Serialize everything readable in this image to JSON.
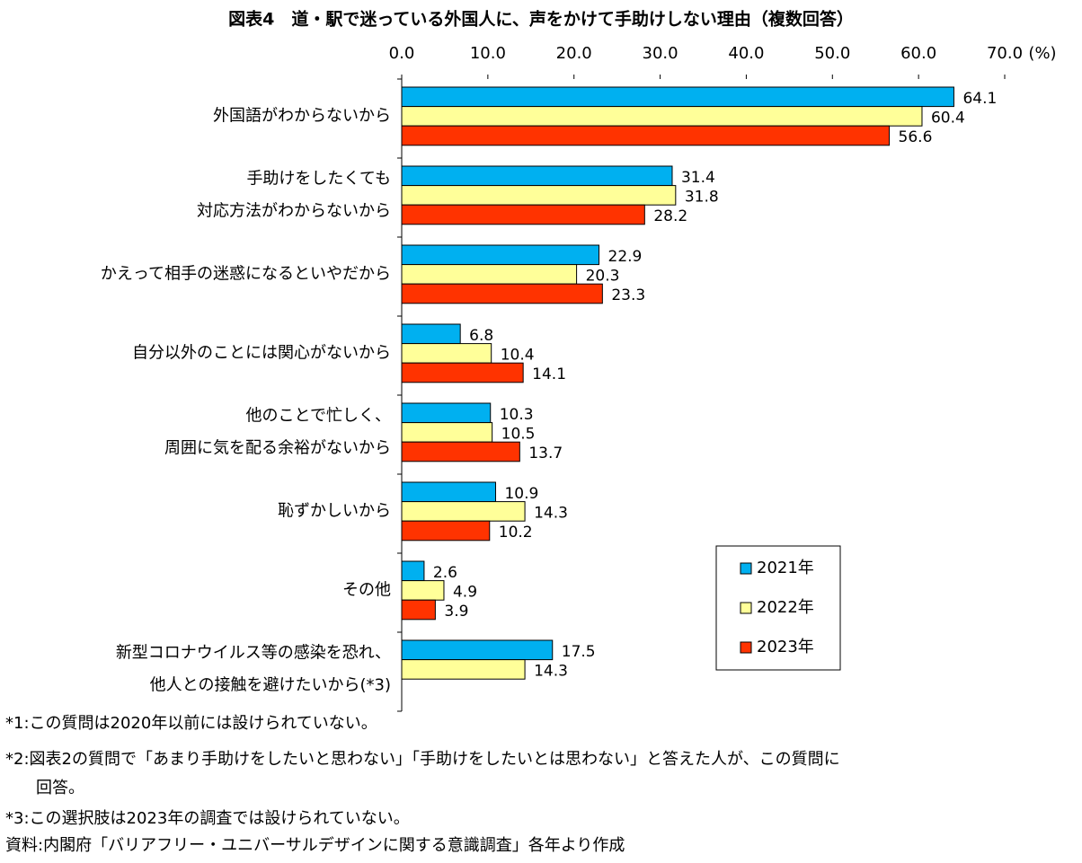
{
  "chart_data": {
    "type": "bar",
    "orientation": "horizontal",
    "title": "図表4　道・駅で迷っている外国人に、声をかけて手助けしない理由（複数回答）",
    "x_label": "(%)",
    "categories": [
      "外国語がわからないから",
      "手助けをしたくても\n対応方法がわからないから",
      "かえって相手の迷惑になるといやだから",
      "自分以外のことには関心がないから",
      "他のことで忙しく、\n周囲に気を配る余裕がないから",
      "恥ずかしいから",
      "その他",
      "新型コロナウイルス等の感染を恐れ、\n他人との接触を避けたいから(*3)"
    ],
    "series": [
      {
        "name": "2021年",
        "color": "#00b0f0",
        "values": [
          64.1,
          31.4,
          22.9,
          6.8,
          10.3,
          10.9,
          2.6,
          17.5
        ]
      },
      {
        "name": "2022年",
        "color": "#ffff99",
        "values": [
          60.4,
          31.8,
          20.3,
          10.4,
          10.5,
          14.3,
          4.9,
          14.3
        ]
      },
      {
        "name": "2023年",
        "color": "#ff3300",
        "values": [
          56.6,
          28.2,
          23.3,
          14.1,
          13.7,
          10.2,
          3.9,
          null
        ]
      }
    ],
    "xlim": [
      0,
      70
    ],
    "xticks": [
      {
        "value": 0,
        "label": "0.0"
      },
      {
        "value": 10,
        "label": "10.0"
      },
      {
        "value": 20,
        "label": "20.0"
      },
      {
        "value": 30,
        "label": "30.0"
      },
      {
        "value": 40,
        "label": "40.0"
      },
      {
        "value": 50,
        "label": "50.0"
      },
      {
        "value": 60,
        "label": "60.0"
      },
      {
        "value": 70,
        "label": "70.0"
      }
    ],
    "legend_position": "lower right"
  },
  "notes": [
    "*1:この質問は2020年以前には設けられていない。",
    "*2:図表2の質問で「あまり手助けをしたいと思わない」「手助けをしたいとは思わない」と答えた人が、この質問に",
    "回答。",
    "*3:この選択肢は2023年の調査では設けられていない。",
    "資料:内閣府「バリアフリー・ユニバーサルデザインに関する意識調査」各年より作成"
  ]
}
